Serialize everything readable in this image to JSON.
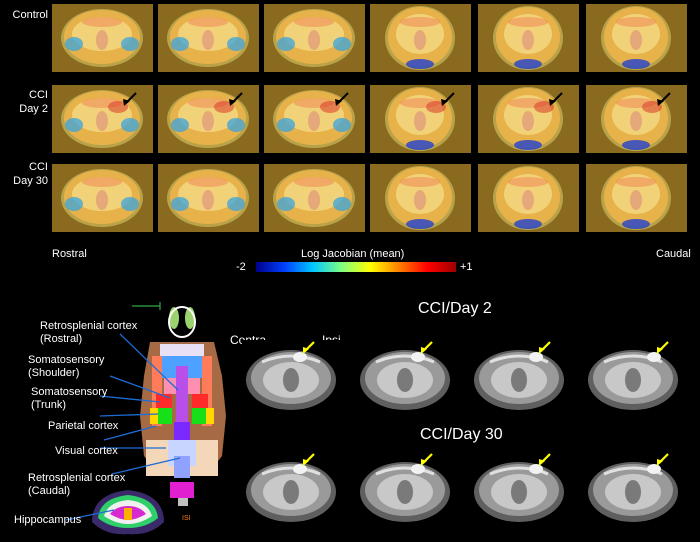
{
  "top": {
    "row_labels": [
      "Control",
      "CCI\nDay 2",
      "CCI\nDay 30"
    ],
    "rostral_label": "Rostral",
    "caudal_label": "Caudal",
    "colorbar_title": "Log Jacobian (mean)",
    "colorbar_min": "-2",
    "colorbar_max": "+1",
    "colors": {
      "background": "#000000",
      "panel_bg": "#8a6a1e",
      "arrow_day2": "#000000"
    }
  },
  "bottom": {
    "regions": [
      "Retrosplenial cortex\n(Rostral)",
      "Somatosensory\n(Shoulder)",
      "Somatosensory\n(Trunk)",
      "Parietal cortex",
      "Visual cortex",
      "Retrosplenial cortex\n(Caudal)",
      "Hippocampus"
    ],
    "day2_title": "CCI/Day 2",
    "day30_title": "CCI/Day 30",
    "contra_label": "Contra",
    "ipsi_label": "Ipsi",
    "colors": {
      "arrow": "#ffff00",
      "leader": "#1e6cd6"
    }
  }
}
